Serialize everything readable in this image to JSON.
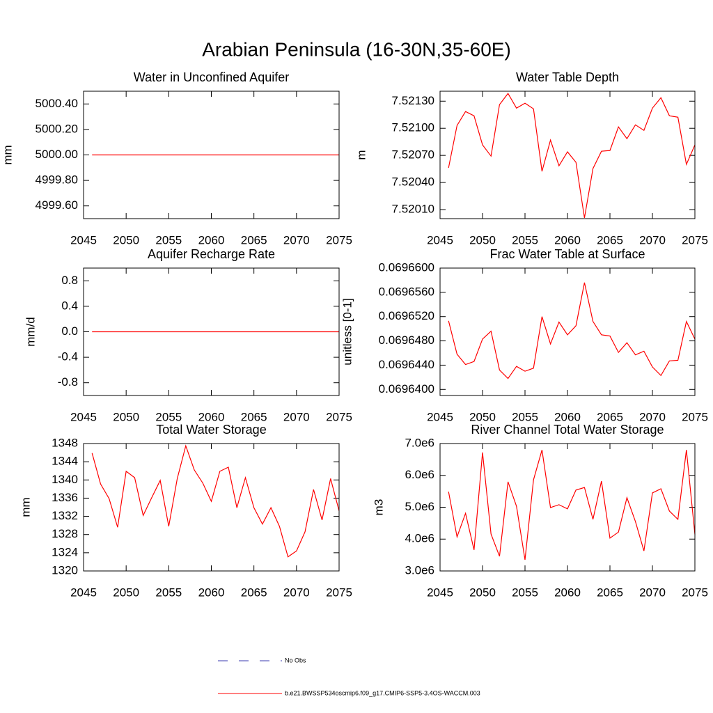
{
  "title": "Arabian Peninsula (16-30N,35-60E)",
  "legend": [
    {
      "name": "No Obs",
      "color": "#3a3ab0",
      "dash": true
    },
    {
      "name": "b.e21.BWSSP534oscmip6.f09_g17.CMIP6-SSP5-3.4OS-WACCM.003",
      "color": "#ff0000",
      "dash": false
    }
  ],
  "chart_data": [
    {
      "type": "line",
      "title": "Water in Unconfined Aquifer",
      "y_label": "mm",
      "color": "#ff0000",
      "x": [
        2046,
        2047,
        2048,
        2049,
        2050,
        2051,
        2052,
        2053,
        2054,
        2055,
        2056,
        2057,
        2058,
        2059,
        2060,
        2061,
        2062,
        2063,
        2064,
        2065,
        2066,
        2067,
        2068,
        2069,
        2070,
        2071,
        2072,
        2073,
        2074,
        2075
      ],
      "values": [
        5000,
        5000,
        5000,
        5000,
        5000,
        5000,
        5000,
        5000,
        5000,
        5000,
        5000,
        5000,
        5000,
        5000,
        5000,
        5000,
        5000,
        5000,
        5000,
        5000,
        5000,
        5000,
        5000,
        5000,
        5000,
        5000,
        5000,
        5000,
        5000,
        5000
      ],
      "xlim": [
        2045,
        2075
      ],
      "xticks": [
        2045,
        2050,
        2055,
        2060,
        2065,
        2070,
        2075
      ],
      "ylim": [
        4999.5,
        5000.5
      ],
      "yticks": [
        {
          "value": 4999.6,
          "label": "4999.60"
        },
        {
          "value": 4999.8,
          "label": "4999.80"
        },
        {
          "value": 5000,
          "label": "5000.00"
        },
        {
          "value": 5000.2,
          "label": "5000.20"
        },
        {
          "value": 5000.4,
          "label": "5000.40"
        }
      ]
    },
    {
      "type": "line",
      "title": "Water Table Depth",
      "y_label": "m",
      "color": "#ff0000",
      "x": [
        2046,
        2047,
        2048,
        2049,
        2050,
        2051,
        2052,
        2053,
        2054,
        2055,
        2056,
        2057,
        2058,
        2059,
        2060,
        2061,
        2062,
        2063,
        2064,
        2065,
        2066,
        2067,
        2068,
        2069,
        2070,
        2071,
        2072,
        2073,
        2074,
        2075
      ],
      "values": [
        7.520562,
        7.521031,
        7.521185,
        7.521138,
        7.520816,
        7.520692,
        7.521262,
        7.521385,
        7.521223,
        7.521277,
        7.521215,
        7.520523,
        7.520869,
        7.520585,
        7.520739,
        7.520623,
        7.520008,
        7.520554,
        7.520746,
        7.520754,
        7.521015,
        7.520885,
        7.521038,
        7.520977,
        7.521223,
        7.521338,
        7.521138,
        7.521123,
        7.5206,
        7.520816
      ],
      "xlim": [
        2045,
        2075
      ],
      "xticks": [
        2045,
        2050,
        2055,
        2060,
        2065,
        2070,
        2075
      ],
      "ylim": [
        7.52,
        7.52141
      ],
      "yticks": [
        {
          "value": 7.5201,
          "label": "7.52010"
        },
        {
          "value": 7.5204,
          "label": "7.52040"
        },
        {
          "value": 7.5207,
          "label": "7.52070"
        },
        {
          "value": 7.521,
          "label": "7.52100"
        },
        {
          "value": 7.5213,
          "label": "7.52130"
        }
      ]
    },
    {
      "type": "line",
      "title": "Aquifer Recharge Rate",
      "y_label": "mm/d",
      "color": "#ff0000",
      "x": [
        2046,
        2047,
        2048,
        2049,
        2050,
        2051,
        2052,
        2053,
        2054,
        2055,
        2056,
        2057,
        2058,
        2059,
        2060,
        2061,
        2062,
        2063,
        2064,
        2065,
        2066,
        2067,
        2068,
        2069,
        2070,
        2071,
        2072,
        2073,
        2074,
        2075
      ],
      "values": [
        0,
        0,
        0,
        0,
        0,
        0,
        0,
        0,
        0,
        0,
        0,
        0,
        0,
        0,
        0,
        0,
        0,
        0,
        0,
        0,
        0,
        0,
        0,
        0,
        0,
        0,
        0,
        0,
        0,
        0
      ],
      "xlim": [
        2045,
        2075
      ],
      "xticks": [
        2045,
        2050,
        2055,
        2060,
        2065,
        2070,
        2075
      ],
      "ylim": [
        -1,
        1
      ],
      "yticks": [
        -0.8,
        -0.4,
        {
          "value": 0,
          "label": "0.0"
        },
        0.4,
        0.8
      ]
    },
    {
      "type": "line",
      "title": "Frac Water Table at Surface",
      "y_label": "unitless [0-1]",
      "color": "#ff0000",
      "x": [
        2046,
        2047,
        2048,
        2049,
        2050,
        2051,
        2052,
        2053,
        2054,
        2055,
        2056,
        2057,
        2058,
        2059,
        2060,
        2061,
        2062,
        2063,
        2064,
        2065,
        2066,
        2067,
        2068,
        2069,
        2070,
        2071,
        2072,
        2073,
        2074,
        2075
      ],
      "values": [
        0.0696513,
        0.0696458,
        0.0696441,
        0.0696446,
        0.0696483,
        0.0696496,
        0.0696432,
        0.0696418,
        0.0696438,
        0.069643,
        0.0696435,
        0.069652,
        0.0696475,
        0.0696511,
        0.069649,
        0.0696505,
        0.0696576,
        0.0696512,
        0.069649,
        0.0696488,
        0.0696461,
        0.0696477,
        0.0696457,
        0.0696463,
        0.0696437,
        0.0696423,
        0.0696447,
        0.0696448,
        0.0696512,
        0.0696483
      ],
      "xlim": [
        2045,
        2075
      ],
      "xticks": [
        2045,
        2050,
        2055,
        2060,
        2065,
        2070,
        2075
      ],
      "ylim": [
        0.069639,
        0.06966
      ],
      "yticks": [
        {
          "value": 0.06964,
          "label": "0.0696400"
        },
        {
          "value": 0.069644,
          "label": "0.0696440"
        },
        {
          "value": 0.069648,
          "label": "0.0696480"
        },
        {
          "value": 0.069652,
          "label": "0.0696520"
        },
        {
          "value": 0.069656,
          "label": "0.0696560"
        },
        {
          "value": 0.06966,
          "label": "0.0696600"
        }
      ]
    },
    {
      "type": "line",
      "title": "Total Water Storage",
      "y_label": "mm",
      "color": "#ff0000",
      "x": [
        2046,
        2047,
        2048,
        2049,
        2050,
        2051,
        2052,
        2053,
        2054,
        2055,
        2056,
        2057,
        2058,
        2059,
        2060,
        2061,
        2062,
        2063,
        2064,
        2065,
        2066,
        2067,
        2068,
        2069,
        2070,
        2071,
        2072,
        2073,
        2074,
        2075
      ],
      "values": [
        1345.9,
        1339.1,
        1335.9,
        1329.6,
        1341.9,
        1340.5,
        1332.2,
        1336.1,
        1339.9,
        1329.8,
        1340.3,
        1347.5,
        1342.2,
        1339.3,
        1335.3,
        1341.9,
        1342.8,
        1333.9,
        1340.5,
        1333.9,
        1330.3,
        1333.9,
        1329.8,
        1323.1,
        1324.4,
        1328.6,
        1337.9,
        1331.2,
        1340.3,
        1333.2
      ],
      "xlim": [
        2045,
        2075
      ],
      "xticks": [
        2045,
        2050,
        2055,
        2060,
        2065,
        2070,
        2075
      ],
      "ylim": [
        1320,
        1348
      ],
      "yticks": [
        1320,
        1324,
        1328,
        1332,
        1336,
        1340,
        1344,
        1348
      ]
    },
    {
      "type": "line",
      "title": "River Channel Total Water Storage",
      "y_label": "m3",
      "color": "#ff0000",
      "x": [
        2046,
        2047,
        2048,
        2049,
        2050,
        2051,
        2052,
        2053,
        2054,
        2055,
        2056,
        2057,
        2058,
        2059,
        2060,
        2061,
        2062,
        2063,
        2064,
        2065,
        2066,
        2067,
        2068,
        2069,
        2070,
        2071,
        2072,
        2073,
        2074,
        2075
      ],
      "values": [
        5490000,
        4070000,
        4810000,
        3660000,
        6720000,
        4160000,
        3460000,
        5800000,
        5030000,
        3350000,
        5860000,
        6800000,
        4990000,
        5080000,
        4950000,
        5540000,
        5620000,
        4620000,
        5820000,
        4030000,
        4220000,
        5300000,
        4550000,
        3630000,
        5450000,
        5580000,
        4880000,
        4620000,
        6800000,
        4150000
      ],
      "xlim": [
        2045,
        2075
      ],
      "xticks": [
        2045,
        2050,
        2055,
        2060,
        2065,
        2070,
        2075
      ],
      "ylim": [
        3000000,
        7000000
      ],
      "yticks": [
        {
          "value": 3000000,
          "label": "3.0e6"
        },
        {
          "value": 4000000,
          "label": "4.0e6"
        },
        {
          "value": 5000000,
          "label": "5.0e6"
        },
        {
          "value": 6000000,
          "label": "6.0e6"
        },
        {
          "value": 7000000,
          "label": "7.0e6"
        }
      ]
    }
  ]
}
